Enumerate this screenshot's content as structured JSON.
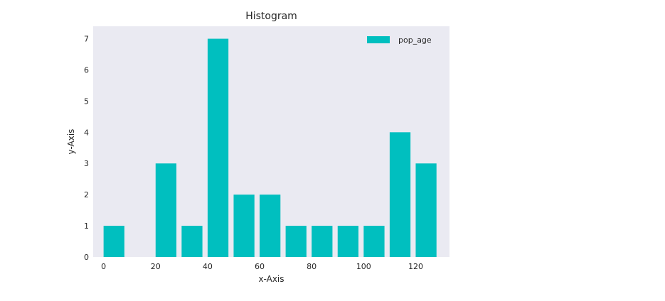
{
  "chart_data": {
    "type": "bar",
    "title": "Histogram",
    "xlabel": "x-Axis",
    "ylabel": "y-Axis",
    "xlim": [
      -4,
      133
    ],
    "ylim": [
      0,
      7.4
    ],
    "xticks": [
      0,
      20,
      40,
      60,
      80,
      100,
      120
    ],
    "yticks": [
      0,
      1,
      2,
      3,
      4,
      5,
      6,
      7
    ],
    "bin_width": 10,
    "grid": false,
    "legend_position": "top-right",
    "series": [
      {
        "name": "pop_age",
        "color": "#00bfbf",
        "bins": [
          {
            "x": 0,
            "value": 1
          },
          {
            "x": 10,
            "value": 0
          },
          {
            "x": 20,
            "value": 3
          },
          {
            "x": 30,
            "value": 1
          },
          {
            "x": 40,
            "value": 7
          },
          {
            "x": 50,
            "value": 2
          },
          {
            "x": 60,
            "value": 2
          },
          {
            "x": 70,
            "value": 1
          },
          {
            "x": 80,
            "value": 1
          },
          {
            "x": 90,
            "value": 1
          },
          {
            "x": 100,
            "value": 1
          },
          {
            "x": 110,
            "value": 4
          },
          {
            "x": 120,
            "value": 3
          }
        ]
      }
    ],
    "plot_background": "#eaeaf2"
  }
}
